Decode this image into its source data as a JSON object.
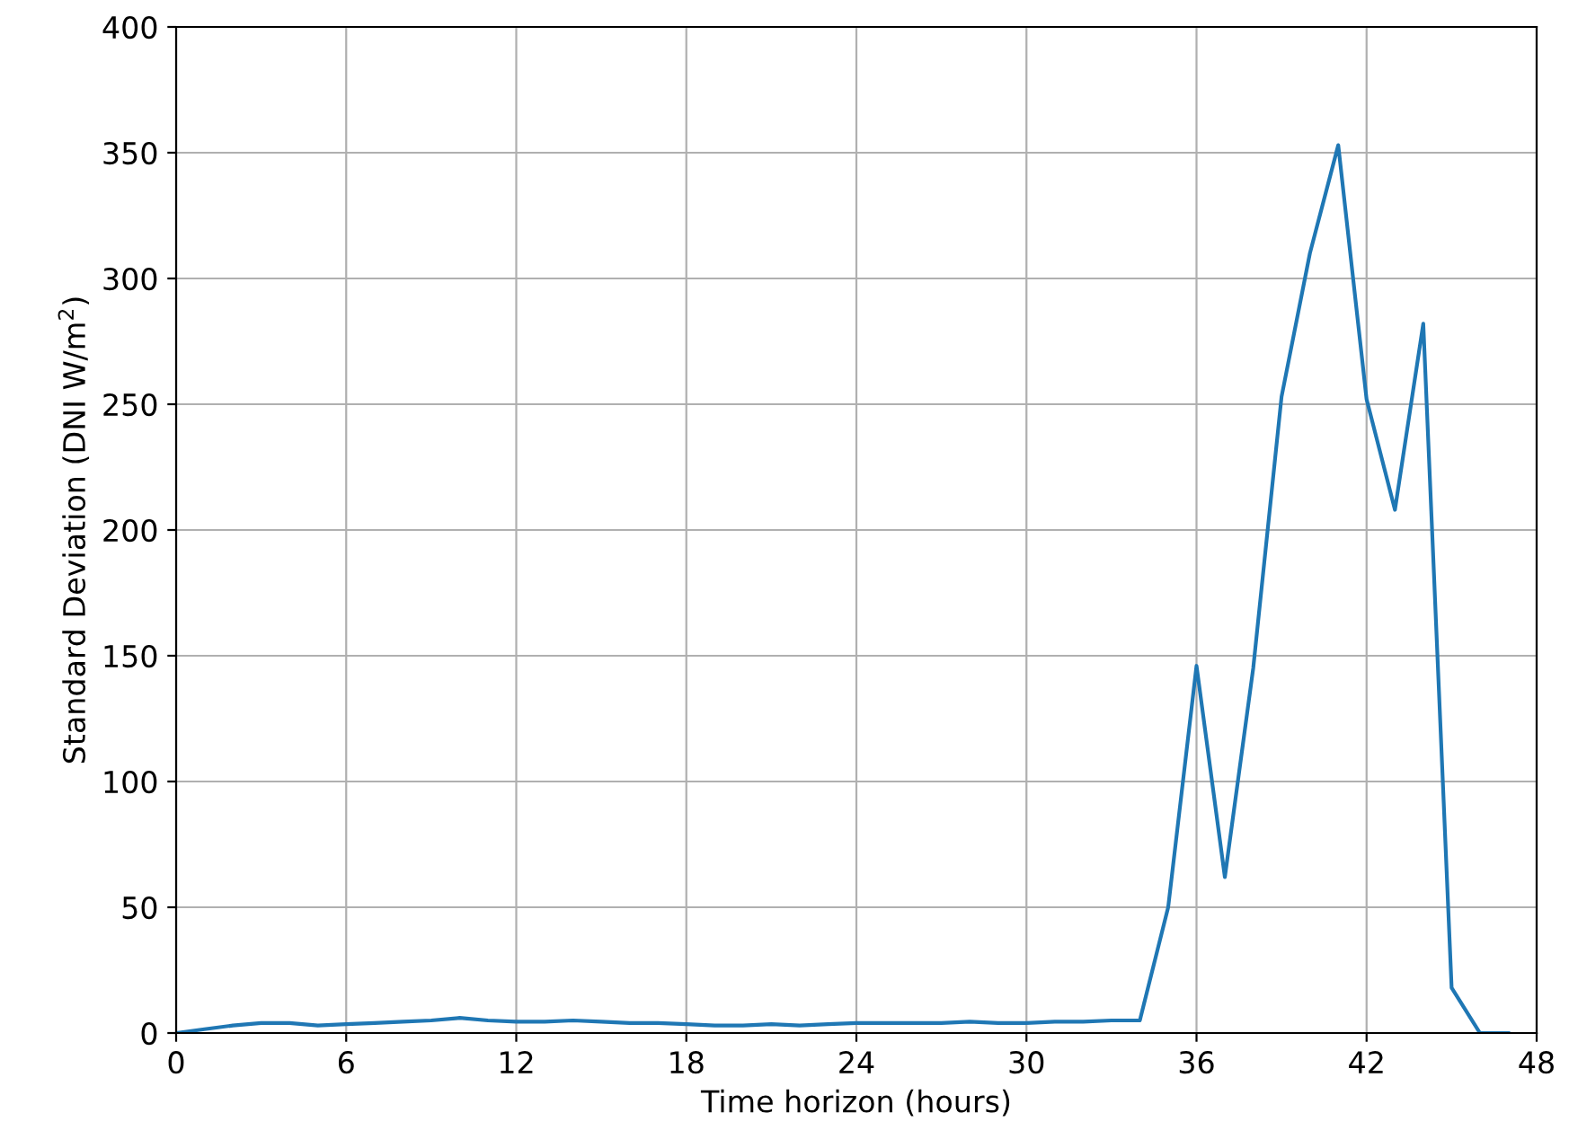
{
  "chart_data": {
    "type": "line",
    "xlabel": "Time horizon (hours)",
    "ylabel": "Standard Deviation (DNI W/m$^{2}$)",
    "x": [
      0,
      1,
      2,
      3,
      4,
      5,
      6,
      7,
      8,
      9,
      10,
      11,
      12,
      13,
      14,
      15,
      16,
      17,
      18,
      19,
      20,
      21,
      22,
      23,
      24,
      25,
      26,
      27,
      28,
      29,
      30,
      31,
      32,
      33,
      34,
      35,
      36,
      37,
      38,
      39,
      40,
      41,
      42,
      43,
      44,
      45,
      46,
      47
    ],
    "series": [
      {
        "color": "#1f77b4",
        "values": [
          0,
          1.5,
          3,
          4,
          4,
          3,
          3.5,
          4,
          4.5,
          5,
          6,
          5,
          4.5,
          4.5,
          5,
          4.5,
          4,
          4,
          3.5,
          3,
          3,
          3.5,
          3,
          3.5,
          4,
          4,
          4,
          4,
          4.5,
          4,
          4,
          4.5,
          4.5,
          5,
          5,
          50,
          146,
          62,
          145,
          253,
          310,
          353,
          252,
          208,
          282,
          18,
          0,
          0
        ]
      }
    ],
    "xlim": [
      0,
      48
    ],
    "xticks": [
      0,
      6,
      12,
      18,
      24,
      30,
      36,
      42,
      48
    ],
    "ylim": [
      0,
      400
    ],
    "yticks": [
      0,
      50,
      100,
      150,
      200,
      250,
      300,
      350,
      400
    ],
    "grid": true,
    "marker": "none",
    "line_style": "solid"
  }
}
